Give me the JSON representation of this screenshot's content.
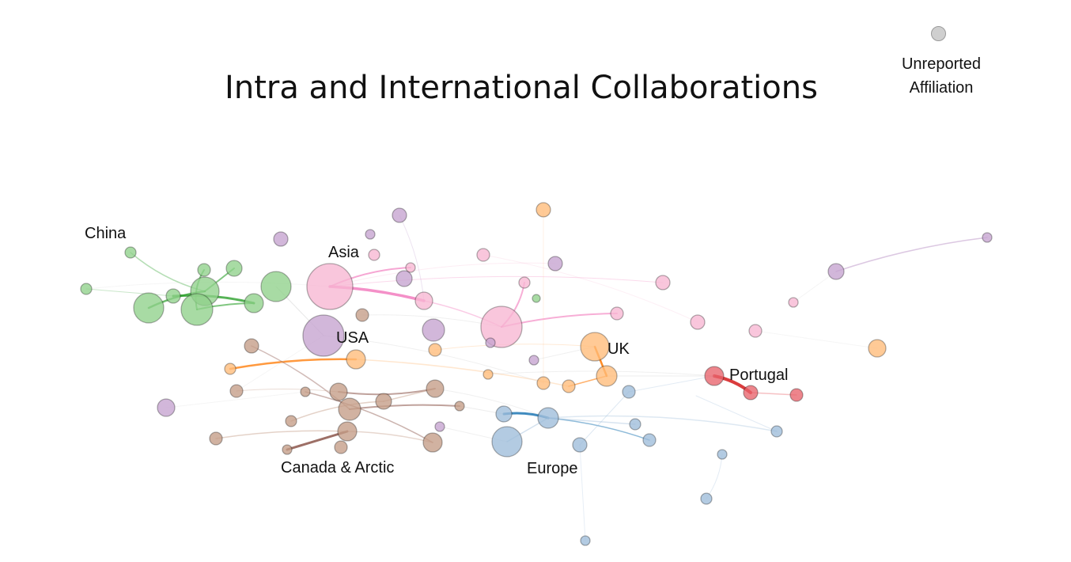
{
  "title": "Intra and International Collaborations",
  "legend": {
    "line1": "Unreported",
    "line2": "Affiliation",
    "color": "#c9c9c9"
  },
  "regions": {
    "china": {
      "label": "China",
      "color": "#7fc97f"
    },
    "asia": {
      "label": "Asia",
      "color": "#f7b6d2"
    },
    "usa": {
      "label": "USA",
      "color": "#c5a3cf"
    },
    "uk": {
      "label": "UK",
      "color": "#ffbb78"
    },
    "portugal": {
      "label": "Portugal",
      "color": "#e8636b"
    },
    "canada": {
      "label": "Canada & Arctic",
      "color": "#c49c86"
    },
    "europe": {
      "label": "Europe",
      "color": "#9ebcda"
    }
  },
  "palette": {
    "green": "#8fd18a",
    "pink": "#f7b6d2",
    "purple": "#c5a3cf",
    "orange": "#ffbb78",
    "brown": "#c49c86",
    "blue": "#9ebcda",
    "red": "#e8636b",
    "edge_green": "#2ca02c",
    "edge_pink": "#f06bb5",
    "edge_orange": "#ff7f0e",
    "edge_brown": "#8c564b",
    "edge_blue": "#1f77b4",
    "edge_red": "#d62728"
  }
}
